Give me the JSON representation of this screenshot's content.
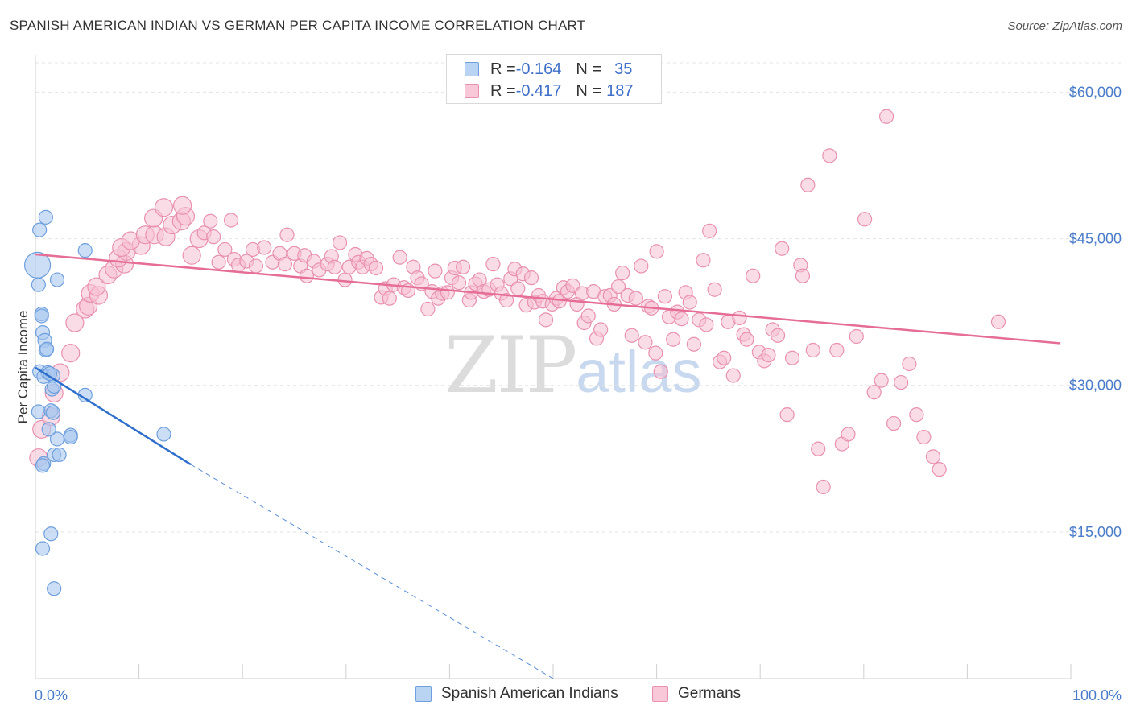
{
  "header": {
    "title": "SPANISH AMERICAN INDIAN VS GERMAN PER CAPITA INCOME CORRELATION CHART",
    "source": "Source: ZipAtlas.com"
  },
  "watermark": {
    "zip": "ZIP",
    "atlas": "atlas"
  },
  "legend_top": [
    {
      "r_label": "R = ",
      "r_value": "-0.164",
      "n_label": "N = ",
      "n_value": "35"
    },
    {
      "r_label": "R = ",
      "r_value": "-0.417",
      "n_label": "N = ",
      "n_value": "187"
    }
  ],
  "chart_data": {
    "type": "scatter",
    "title": "SPANISH AMERICAN INDIAN VS GERMAN PER CAPITA INCOME CORRELATION CHART",
    "xlabel": "",
    "ylabel": "Per Capita Income",
    "xlim": [
      0,
      100
    ],
    "ylim": [
      0,
      63000
    ],
    "x_tick_labels": [
      "0.0%",
      "100.0%"
    ],
    "y_ticks": [
      15000,
      30000,
      45000,
      60000
    ],
    "y_tick_labels": [
      "$15,000",
      "$30,000",
      "$45,000",
      "$60,000"
    ],
    "grid": true,
    "legend_position": "top-center",
    "colors": {
      "spanish_fill": "#a9c8f0",
      "spanish_stroke": "#6f9fdc",
      "spanish_line": "#2f6fcc",
      "german_fill": "#f6bfd2",
      "german_stroke": "#e891b0",
      "german_line": "#e56d96",
      "tick_text": "#4a7cc9"
    },
    "series": [
      {
        "name": "Spanish American Indians",
        "trend": {
          "x": [
            0,
            15
          ],
          "y": [
            31800,
            21900
          ],
          "dashed_to": [
            50,
            0
          ]
        },
        "points": [
          [
            0.2,
            42300
          ],
          [
            1.0,
            47200
          ],
          [
            0.4,
            45900
          ],
          [
            4.8,
            43800
          ],
          [
            0.3,
            40300
          ],
          [
            2.1,
            40800
          ],
          [
            0.6,
            37300
          ],
          [
            0.6,
            37100
          ],
          [
            0.7,
            35400
          ],
          [
            0.9,
            34600
          ],
          [
            1.0,
            33600
          ],
          [
            1.1,
            33700
          ],
          [
            0.4,
            31400
          ],
          [
            1.2,
            31300
          ],
          [
            0.8,
            30900
          ],
          [
            1.7,
            31000
          ],
          [
            1.6,
            29600
          ],
          [
            1.8,
            29900
          ],
          [
            4.8,
            29000
          ],
          [
            0.3,
            27300
          ],
          [
            1.5,
            27400
          ],
          [
            1.7,
            27200
          ],
          [
            3.4,
            24900
          ],
          [
            3.4,
            24700
          ],
          [
            2.1,
            24500
          ],
          [
            12.4,
            25000
          ],
          [
            1.3,
            25500
          ],
          [
            1.8,
            22900
          ],
          [
            2.3,
            22900
          ],
          [
            0.8,
            22000
          ],
          [
            0.7,
            21800
          ],
          [
            1.5,
            14800
          ],
          [
            0.7,
            13300
          ],
          [
            1.8,
            9200
          ],
          [
            1.4,
            31200
          ]
        ]
      },
      {
        "name": "Germans",
        "trend": {
          "x": [
            0,
            99
          ],
          "y": [
            43400,
            34300
          ]
        },
        "points": [
          [
            0.3,
            22600
          ],
          [
            0.6,
            25500
          ],
          [
            1.5,
            26800
          ],
          [
            1.8,
            29200
          ],
          [
            2.4,
            31300
          ],
          [
            3.4,
            33300
          ],
          [
            3.8,
            36400
          ],
          [
            4.8,
            37800
          ],
          [
            5.1,
            38100
          ],
          [
            5.3,
            39400
          ],
          [
            6.1,
            39200
          ],
          [
            5.9,
            40100
          ],
          [
            7.0,
            41300
          ],
          [
            7.6,
            41900
          ],
          [
            8.6,
            42400
          ],
          [
            8.0,
            43000
          ],
          [
            8.8,
            43700
          ],
          [
            8.3,
            44100
          ],
          [
            10.2,
            44300
          ],
          [
            9.2,
            44800
          ],
          [
            10.6,
            45400
          ],
          [
            11.5,
            45400
          ],
          [
            12.6,
            45200
          ],
          [
            11.4,
            47100
          ],
          [
            12.4,
            48200
          ],
          [
            13.2,
            46400
          ],
          [
            14.1,
            46800
          ],
          [
            14.5,
            47300
          ],
          [
            14.2,
            48400
          ],
          [
            15.1,
            43300
          ],
          [
            15.8,
            45000
          ],
          [
            16.3,
            45600
          ],
          [
            16.9,
            46800
          ],
          [
            17.2,
            45200
          ],
          [
            17.7,
            42600
          ],
          [
            18.3,
            43900
          ],
          [
            18.9,
            46900
          ],
          [
            19.2,
            42900
          ],
          [
            19.6,
            42300
          ],
          [
            20.4,
            42700
          ],
          [
            21.3,
            42200
          ],
          [
            21.0,
            43900
          ],
          [
            22.1,
            44100
          ],
          [
            22.9,
            42600
          ],
          [
            23.6,
            43500
          ],
          [
            24.1,
            42400
          ],
          [
            24.3,
            45400
          ],
          [
            25.0,
            43500
          ],
          [
            25.6,
            42200
          ],
          [
            26.0,
            43300
          ],
          [
            26.2,
            41200
          ],
          [
            26.9,
            42700
          ],
          [
            27.4,
            41800
          ],
          [
            28.2,
            42400
          ],
          [
            28.6,
            43200
          ],
          [
            28.9,
            42100
          ],
          [
            29.4,
            44600
          ],
          [
            29.9,
            40800
          ],
          [
            30.3,
            42100
          ],
          [
            30.9,
            43400
          ],
          [
            31.2,
            42600
          ],
          [
            31.6,
            42100
          ],
          [
            32.0,
            43000
          ],
          [
            32.4,
            42400
          ],
          [
            32.9,
            42000
          ],
          [
            33.4,
            39000
          ],
          [
            33.8,
            39900
          ],
          [
            34.2,
            38900
          ],
          [
            34.6,
            40300
          ],
          [
            35.2,
            43100
          ],
          [
            35.6,
            40000
          ],
          [
            36.0,
            39700
          ],
          [
            36.5,
            42100
          ],
          [
            36.9,
            41000
          ],
          [
            37.3,
            40400
          ],
          [
            37.9,
            37800
          ],
          [
            38.3,
            39600
          ],
          [
            38.6,
            41700
          ],
          [
            38.9,
            38900
          ],
          [
            39.3,
            39400
          ],
          [
            39.8,
            39500
          ],
          [
            40.2,
            41000
          ],
          [
            40.5,
            42000
          ],
          [
            40.9,
            40500
          ],
          [
            41.3,
            42100
          ],
          [
            41.9,
            38700
          ],
          [
            42.1,
            39500
          ],
          [
            42.5,
            40400
          ],
          [
            42.9,
            40800
          ],
          [
            43.3,
            39600
          ],
          [
            43.8,
            39800
          ],
          [
            44.2,
            42400
          ],
          [
            44.6,
            40300
          ],
          [
            45.0,
            39400
          ],
          [
            45.5,
            38700
          ],
          [
            45.9,
            40900
          ],
          [
            46.3,
            41900
          ],
          [
            46.6,
            39900
          ],
          [
            47.1,
            41400
          ],
          [
            47.4,
            38200
          ],
          [
            47.9,
            41000
          ],
          [
            48.2,
            38500
          ],
          [
            48.6,
            39200
          ],
          [
            49.0,
            38600
          ],
          [
            49.3,
            36700
          ],
          [
            49.9,
            38300
          ],
          [
            50.3,
            38900
          ],
          [
            50.6,
            38600
          ],
          [
            51.0,
            40000
          ],
          [
            51.4,
            39600
          ],
          [
            51.9,
            40200
          ],
          [
            52.3,
            38300
          ],
          [
            52.8,
            39400
          ],
          [
            53.0,
            36400
          ],
          [
            53.4,
            37100
          ],
          [
            53.9,
            39600
          ],
          [
            54.2,
            34800
          ],
          [
            54.6,
            35700
          ],
          [
            55.0,
            39100
          ],
          [
            55.5,
            39200
          ],
          [
            55.9,
            38300
          ],
          [
            56.3,
            40100
          ],
          [
            56.7,
            41500
          ],
          [
            57.2,
            39200
          ],
          [
            57.6,
            35100
          ],
          [
            58.0,
            38900
          ],
          [
            58.5,
            42200
          ],
          [
            58.9,
            34400
          ],
          [
            59.2,
            38100
          ],
          [
            59.5,
            37900
          ],
          [
            60.0,
            43700
          ],
          [
            60.4,
            31400
          ],
          [
            60.8,
            39100
          ],
          [
            61.2,
            37000
          ],
          [
            61.6,
            34700
          ],
          [
            62.0,
            37500
          ],
          [
            62.4,
            36800
          ],
          [
            62.8,
            39500
          ],
          [
            63.2,
            38500
          ],
          [
            63.6,
            34200
          ],
          [
            64.1,
            36700
          ],
          [
            64.5,
            42800
          ],
          [
            64.8,
            36200
          ],
          [
            65.1,
            45800
          ],
          [
            65.6,
            39800
          ],
          [
            66.1,
            32400
          ],
          [
            66.5,
            32800
          ],
          [
            66.9,
            36500
          ],
          [
            67.4,
            31000
          ],
          [
            68.0,
            36900
          ],
          [
            68.4,
            35200
          ],
          [
            68.7,
            34700
          ],
          [
            69.3,
            41200
          ],
          [
            69.9,
            33400
          ],
          [
            70.4,
            32500
          ],
          [
            70.8,
            33100
          ],
          [
            71.2,
            35700
          ],
          [
            71.7,
            35100
          ],
          [
            72.1,
            44000
          ],
          [
            72.6,
            27000
          ],
          [
            73.1,
            32800
          ],
          [
            73.9,
            42300
          ],
          [
            74.1,
            41200
          ],
          [
            74.6,
            50500
          ],
          [
            75.1,
            33600
          ],
          [
            75.6,
            23500
          ],
          [
            76.1,
            19600
          ],
          [
            76.7,
            53500
          ],
          [
            77.4,
            33600
          ],
          [
            77.9,
            24000
          ],
          [
            78.5,
            25000
          ],
          [
            79.3,
            35000
          ],
          [
            80.1,
            47000
          ],
          [
            81.0,
            29300
          ],
          [
            81.7,
            30500
          ],
          [
            82.2,
            57500
          ],
          [
            82.9,
            26100
          ],
          [
            83.6,
            30300
          ],
          [
            84.4,
            32200
          ],
          [
            85.1,
            27000
          ],
          [
            85.8,
            24700
          ],
          [
            86.7,
            22700
          ],
          [
            87.3,
            21400
          ],
          [
            93.0,
            36500
          ],
          [
            59.9,
            33300
          ]
        ]
      }
    ]
  },
  "legend_bottom": [
    {
      "label": "Spanish American Indians"
    },
    {
      "label": "Germans"
    }
  ]
}
